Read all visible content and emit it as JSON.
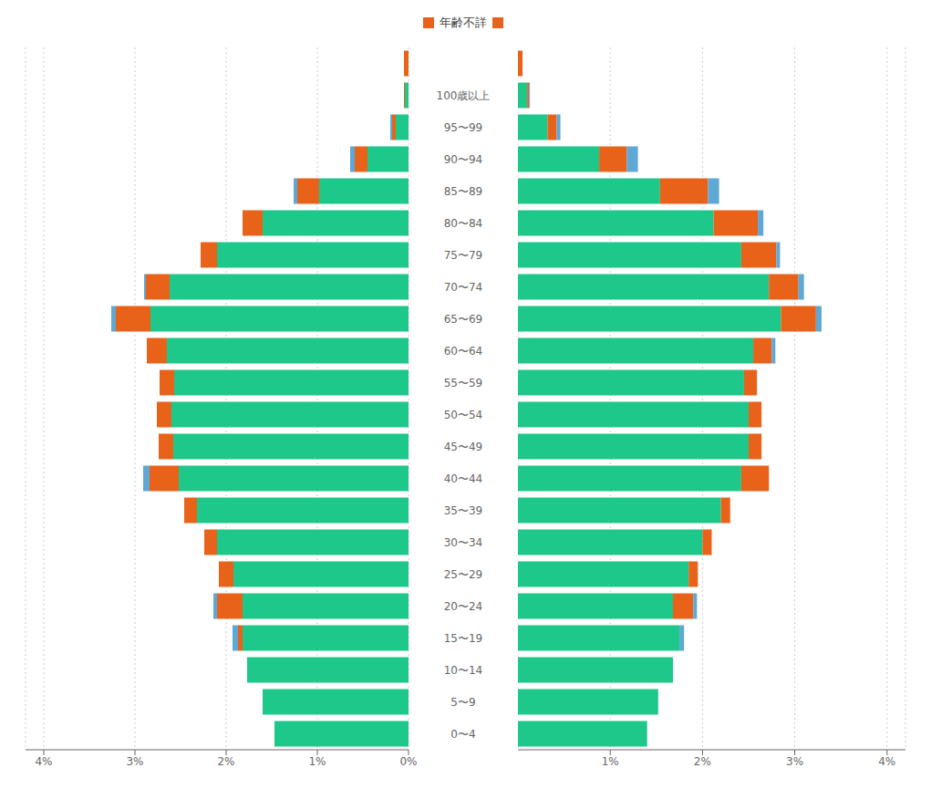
{
  "chart_data": [
    {
      "type": "bar",
      "orientation": "horizontal",
      "stacked": true,
      "grid": true,
      "legend": "top",
      "categories": [
        "0〜4",
        "5〜9",
        "10〜14",
        "15〜19",
        "20〜24",
        "25〜29",
        "30〜34",
        "35〜39",
        "40〜44",
        "45〜49",
        "50〜54",
        "55〜59",
        "60〜64",
        "65〜69",
        "70〜74",
        "75〜79",
        "80〜84",
        "85〜89",
        "90〜94",
        "95〜99",
        "100歳以上",
        null
      ],
      "series": [
        {
          "color": "#1dc88a",
          "values": [
            1.47,
            1.6,
            1.77,
            1.82,
            1.82,
            1.92,
            2.1,
            2.32,
            2.52,
            2.58,
            2.6,
            2.57,
            2.65,
            2.83,
            2.62,
            2.1,
            1.6,
            0.98,
            0.45,
            0.14,
            0.04,
            null
          ]
        },
        {
          "name": "年齢不詳",
          "color": "#e8621a",
          "values": [
            0.0,
            0.0,
            0.0,
            0.05,
            0.28,
            0.16,
            0.14,
            0.14,
            0.32,
            0.16,
            0.16,
            0.16,
            0.22,
            0.38,
            0.26,
            0.18,
            0.22,
            0.24,
            0.14,
            0.04,
            0.01,
            0.05
          ]
        },
        {
          "color": "#5da8d4",
          "values": [
            0.0,
            0.0,
            0.0,
            0.06,
            0.04,
            0.0,
            0.0,
            0.0,
            0.07,
            0.0,
            0.0,
            0.0,
            0.0,
            0.05,
            0.02,
            0.0,
            0.0,
            0.04,
            0.05,
            0.02,
            0.0,
            null
          ]
        }
      ],
      "xlim": [
        4.2,
        0
      ],
      "xticks": [
        {
          "value": 4,
          "label": "4%"
        },
        {
          "value": 3,
          "label": "3%"
        },
        {
          "value": 2,
          "label": "2%"
        },
        {
          "value": 1,
          "label": "1%"
        },
        {
          "value": 0,
          "label": "0%"
        }
      ]
    },
    {
      "type": "bar",
      "orientation": "horizontal",
      "stacked": true,
      "grid": true,
      "categories": [
        "0〜4",
        "5〜9",
        "10〜14",
        "15〜19",
        "20〜24",
        "25〜29",
        "30〜34",
        "35〜39",
        "40〜44",
        "45〜49",
        "50〜54",
        "55〜59",
        "60〜64",
        "65〜69",
        "70〜74",
        "75〜79",
        "80〜84",
        "85〜89",
        "90〜94",
        "95〜99",
        "100歳以上",
        null
      ],
      "series": [
        {
          "color": "#1dc88a",
          "values": [
            1.4,
            1.52,
            1.68,
            1.75,
            1.68,
            1.85,
            2.0,
            2.2,
            2.42,
            2.5,
            2.5,
            2.45,
            2.55,
            2.85,
            2.72,
            2.42,
            2.12,
            1.54,
            0.88,
            0.32,
            0.1,
            null
          ]
        },
        {
          "name": "年齢不詳",
          "color": "#e8621a",
          "values": [
            0.0,
            0.0,
            0.0,
            0.0,
            0.22,
            0.1,
            0.1,
            0.1,
            0.3,
            0.14,
            0.14,
            0.14,
            0.2,
            0.38,
            0.32,
            0.38,
            0.48,
            0.52,
            0.3,
            0.1,
            0.02,
            0.05
          ]
        },
        {
          "color": "#5da8d4",
          "values": [
            0.0,
            0.0,
            0.0,
            0.05,
            0.04,
            0.0,
            0.0,
            0.0,
            0.0,
            0.0,
            0.0,
            0.0,
            0.04,
            0.06,
            0.06,
            0.04,
            0.06,
            0.12,
            0.12,
            0.04,
            0.01,
            null
          ]
        }
      ],
      "xlim": [
        0,
        4.2
      ],
      "xticks": [
        {
          "value": 0,
          "label": "0%"
        },
        {
          "value": 1,
          "label": "1%"
        },
        {
          "value": 2,
          "label": "2%"
        },
        {
          "value": 3,
          "label": "3%"
        },
        {
          "value": 4,
          "label": "4%"
        }
      ]
    }
  ]
}
